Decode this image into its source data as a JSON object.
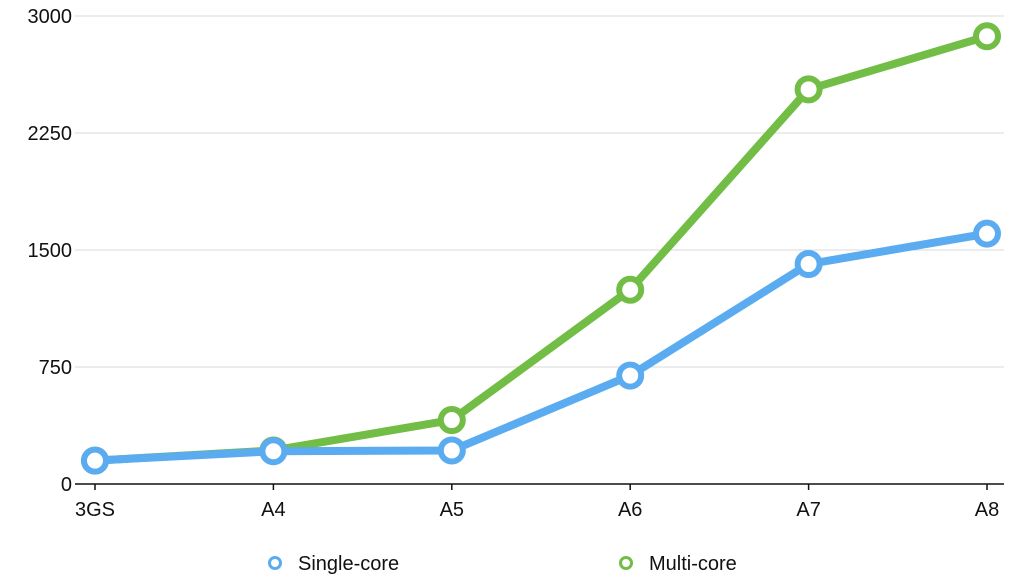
{
  "chart_data": {
    "type": "line",
    "title": "",
    "xlabel": "",
    "ylabel": "",
    "categories": [
      "3GS",
      "A4",
      "A5",
      "A6",
      "A7",
      "A8"
    ],
    "ylim": [
      0,
      3000
    ],
    "yticks": [
      0,
      750,
      1500,
      2250,
      3000
    ],
    "grid": true,
    "legend_position": "bottom",
    "series": [
      {
        "name": "Single-core",
        "color": "#5aabf0",
        "values": [
          150,
          210,
          215,
          695,
          1410,
          1605
        ]
      },
      {
        "name": "Multi-core",
        "color": "#71bd45",
        "values": [
          150,
          215,
          410,
          1245,
          2530,
          2870
        ]
      }
    ]
  }
}
